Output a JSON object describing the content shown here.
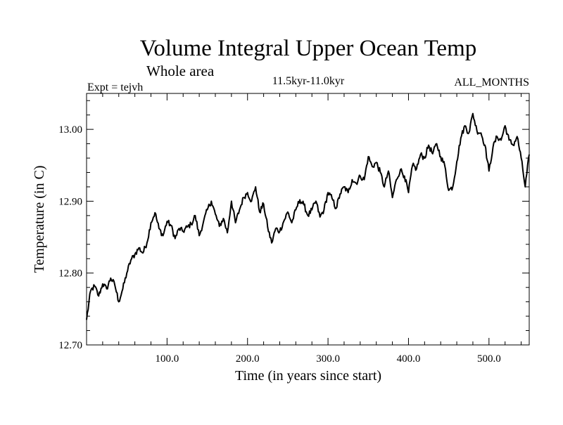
{
  "header": {
    "title": "Volume Integral Upper Ocean Temp",
    "subtitle": "Whole area",
    "expt": "Expt = tejvh",
    "period": "11.5kyr-11.0kyr",
    "months": "ALL_MONTHS"
  },
  "chart_data": {
    "type": "line",
    "title": "Volume Integral Upper Ocean Temp",
    "subtitle": "Whole area",
    "xlabel": "Time (in years since start)",
    "ylabel": "Temperature (in C)",
    "xlim": [
      0,
      550
    ],
    "ylim": [
      12.7,
      13.05
    ],
    "xticks": [
      100,
      200,
      300,
      400,
      500
    ],
    "xtick_labels": [
      "100.0",
      "200.0",
      "300.0",
      "400.0",
      "500.0"
    ],
    "yticks": [
      12.7,
      12.8,
      12.9,
      13.0
    ],
    "ytick_labels": [
      "12.70",
      "12.80",
      "12.90",
      "13.00"
    ],
    "grid": false,
    "series": [
      {
        "name": "tejvh",
        "color": "#000000",
        "x": [
          0,
          5,
          10,
          15,
          20,
          25,
          30,
          35,
          40,
          45,
          50,
          55,
          60,
          65,
          70,
          75,
          80,
          85,
          90,
          95,
          100,
          105,
          110,
          115,
          120,
          125,
          130,
          135,
          140,
          145,
          150,
          155,
          160,
          165,
          170,
          175,
          180,
          185,
          190,
          195,
          200,
          205,
          210,
          215,
          220,
          225,
          230,
          235,
          240,
          245,
          250,
          255,
          260,
          265,
          270,
          275,
          280,
          285,
          290,
          295,
          300,
          305,
          310,
          315,
          320,
          325,
          330,
          335,
          340,
          345,
          350,
          355,
          360,
          365,
          370,
          375,
          380,
          385,
          390,
          395,
          400,
          405,
          410,
          415,
          420,
          425,
          430,
          435,
          440,
          445,
          450,
          455,
          460,
          465,
          470,
          475,
          480,
          485,
          490,
          495,
          500,
          505,
          510,
          515,
          520,
          525,
          530,
          535,
          540,
          545,
          550
        ],
        "values": [
          12.735,
          12.775,
          12.782,
          12.768,
          12.785,
          12.778,
          12.793,
          12.784,
          12.76,
          12.778,
          12.8,
          12.818,
          12.826,
          12.835,
          12.828,
          12.842,
          12.87,
          12.884,
          12.862,
          12.852,
          12.872,
          12.866,
          12.848,
          12.862,
          12.858,
          12.864,
          12.868,
          12.88,
          12.852,
          12.87,
          12.888,
          12.9,
          12.882,
          12.865,
          12.876,
          12.856,
          12.9,
          12.87,
          12.888,
          12.905,
          12.912,
          12.9,
          12.92,
          12.885,
          12.896,
          12.864,
          12.842,
          12.862,
          12.858,
          12.872,
          12.885,
          12.87,
          12.888,
          12.902,
          12.895,
          12.88,
          12.888,
          12.9,
          12.878,
          12.888,
          12.912,
          12.904,
          12.89,
          12.91,
          12.92,
          12.912,
          12.93,
          12.925,
          12.935,
          12.93,
          12.962,
          12.948,
          12.954,
          12.94,
          12.92,
          12.942,
          12.905,
          12.93,
          12.944,
          12.935,
          12.912,
          12.95,
          12.945,
          12.965,
          12.96,
          12.978,
          12.966,
          12.98,
          12.962,
          12.95,
          12.915,
          12.92,
          12.955,
          12.988,
          13.005,
          12.995,
          13.022,
          12.998,
          12.995,
          12.978,
          12.942,
          12.975,
          12.99,
          12.985,
          13.005,
          12.985,
          12.978,
          12.99,
          12.96,
          12.92,
          12.965
        ]
      }
    ]
  }
}
